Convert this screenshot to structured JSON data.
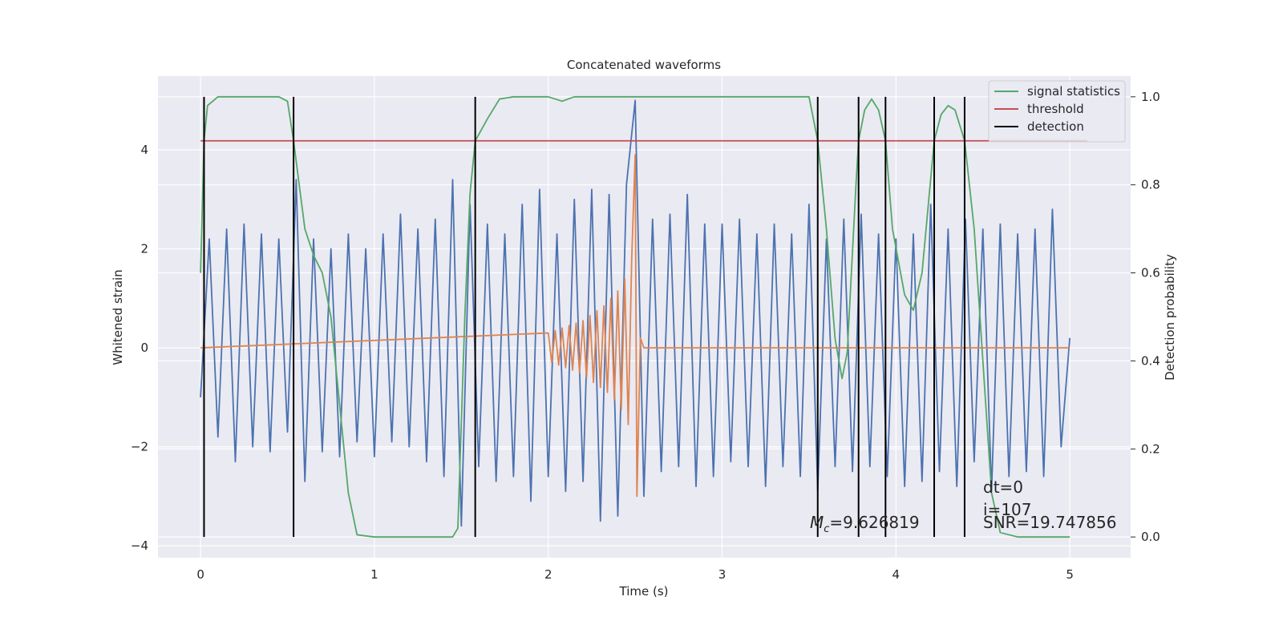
{
  "chart_data": {
    "type": "line",
    "title": "Concatenated waveforms",
    "xlabel": "Time (s)",
    "ylabel": "Whitened strain",
    "y2label": "Detection probability",
    "xlim": [
      -0.245,
      5.35
    ],
    "ylim": [
      -4.24,
      5.49
    ],
    "y2lim": [
      -0.047,
      1.047
    ],
    "xticks": [
      0,
      1,
      2,
      3,
      4,
      5
    ],
    "yticks": [
      {
        "value": -4,
        "label": "−4"
      },
      {
        "value": -2,
        "label": "−2"
      },
      0,
      2,
      4
    ],
    "y2ticks": [
      {
        "value": 0,
        "label": "0.0"
      },
      0.2,
      0.4,
      0.6,
      0.8,
      {
        "value": 1,
        "label": "1.0"
      }
    ],
    "grid": true,
    "legend": "upper right",
    "series": [
      {
        "name": null,
        "color": "#4c72b0",
        "axis": "y",
        "x": [
          0,
          0.05,
          0.1,
          0.15,
          0.2,
          0.25,
          0.3,
          0.35,
          0.4,
          0.45,
          0.5,
          0.55,
          0.6,
          0.65,
          0.7,
          0.75,
          0.8,
          0.85,
          0.9,
          0.95,
          1,
          1.05,
          1.1,
          1.15,
          1.2,
          1.25,
          1.3,
          1.35,
          1.4,
          1.45,
          1.5,
          1.55,
          1.6,
          1.65,
          1.7,
          1.75,
          1.8,
          1.85,
          1.9,
          1.95,
          2,
          2.05,
          2.1,
          2.15,
          2.2,
          2.25,
          2.3,
          2.35,
          2.4,
          2.45,
          2.5,
          2.55,
          2.6,
          2.65,
          2.7,
          2.75,
          2.8,
          2.85,
          2.9,
          2.95,
          3,
          3.05,
          3.1,
          3.15,
          3.2,
          3.25,
          3.3,
          3.35,
          3.4,
          3.45,
          3.5,
          3.55,
          3.6,
          3.65,
          3.7,
          3.75,
          3.8,
          3.85,
          3.9,
          3.95,
          4,
          4.05,
          4.1,
          4.15,
          4.2,
          4.25,
          4.3,
          4.35,
          4.4,
          4.45,
          4.5,
          4.55,
          4.6,
          4.65,
          4.7,
          4.75,
          4.8,
          4.85,
          4.9,
          4.95,
          5
        ],
        "values": [
          -1.0,
          2.2,
          -1.8,
          2.4,
          -2.3,
          2.5,
          -2.0,
          2.3,
          -2.1,
          2.2,
          -1.7,
          3.4,
          -2.7,
          2.2,
          -2.1,
          2.0,
          -2.2,
          2.3,
          -1.9,
          2.0,
          -2.2,
          2.3,
          -1.9,
          2.7,
          -2.0,
          2.4,
          -2.3,
          2.6,
          -2.6,
          3.4,
          -3.6,
          2.9,
          -2.4,
          2.5,
          -2.7,
          2.3,
          -2.6,
          2.9,
          -3.1,
          3.2,
          -2.6,
          2.3,
          -2.9,
          3.0,
          -2.7,
          3.2,
          -3.5,
          3.1,
          -3.4,
          3.3,
          5.0,
          -3.0,
          2.6,
          -2.5,
          2.7,
          -2.4,
          3.1,
          -2.8,
          2.5,
          -2.6,
          2.5,
          -2.3,
          2.6,
          -2.4,
          2.3,
          -2.8,
          2.5,
          -2.4,
          2.3,
          -2.6,
          2.9,
          -2.9,
          2.2,
          -2.4,
          2.6,
          -2.5,
          2.7,
          -2.4,
          2.3,
          -2.6,
          2.2,
          -2.8,
          2.3,
          -2.7,
          2.9,
          -2.5,
          2.4,
          -2.8,
          2.6,
          -2.3,
          2.4,
          -2.9,
          2.5,
          -2.6,
          2.3,
          -2.5,
          2.4,
          -2.6,
          2.8,
          -2.0,
          0.2
        ]
      },
      {
        "name": null,
        "color": "#dd8452",
        "axis": "y",
        "x": [
          0,
          2.0,
          2.02,
          2.04,
          2.06,
          2.08,
          2.1,
          2.12,
          2.14,
          2.16,
          2.18,
          2.2,
          2.22,
          2.24,
          2.26,
          2.28,
          2.3,
          2.32,
          2.34,
          2.36,
          2.38,
          2.4,
          2.42,
          2.44,
          2.46,
          2.48,
          2.5,
          2.51,
          2.53,
          2.55,
          5.0
        ],
        "values": [
          0,
          0.3,
          -0.3,
          0.35,
          -0.35,
          0.4,
          -0.4,
          0.45,
          -0.45,
          0.5,
          -0.5,
          0.55,
          -0.6,
          0.65,
          -0.7,
          0.75,
          -0.8,
          0.85,
          -0.9,
          1.0,
          -1.05,
          1.15,
          -1.25,
          1.4,
          -1.55,
          1.8,
          3.9,
          -3.0,
          0.2,
          0,
          0
        ]
      },
      {
        "name": "signal statistics",
        "color": "#55a868",
        "axis": "y2",
        "x": [
          0,
          0.02,
          0.04,
          0.1,
          0.45,
          0.5,
          0.535,
          0.6,
          0.65,
          0.7,
          0.75,
          0.8,
          0.85,
          0.9,
          1.0,
          1.45,
          1.48,
          1.52,
          1.55,
          1.58,
          1.65,
          1.72,
          1.8,
          2.0,
          2.08,
          2.15,
          3.5,
          3.55,
          3.6,
          3.65,
          3.69,
          3.72,
          3.77,
          3.785,
          3.82,
          3.86,
          3.9,
          3.94,
          3.98,
          4.05,
          4.1,
          4.15,
          4.22,
          4.26,
          4.3,
          4.34,
          4.395,
          4.45,
          4.5,
          4.55,
          4.6,
          4.7,
          5.0
        ],
        "values": [
          0.6,
          0.9,
          0.98,
          1.0,
          1.0,
          0.99,
          0.9,
          0.7,
          0.64,
          0.6,
          0.5,
          0.3,
          0.1,
          0.005,
          0.0,
          0.0,
          0.02,
          0.5,
          0.78,
          0.9,
          0.95,
          0.995,
          1.0,
          1.0,
          0.99,
          1.0,
          1.0,
          0.9,
          0.7,
          0.45,
          0.36,
          0.42,
          0.8,
          0.9,
          0.97,
          0.995,
          0.97,
          0.9,
          0.7,
          0.55,
          0.515,
          0.6,
          0.9,
          0.96,
          0.98,
          0.97,
          0.9,
          0.7,
          0.4,
          0.1,
          0.01,
          0.0,
          0.0
        ]
      },
      {
        "name": "threshold",
        "color": "#c44e52",
        "axis": "y2",
        "x": [
          0,
          5.1
        ],
        "values": [
          0.9,
          0.9
        ]
      },
      {
        "name": "detection",
        "color": "#000000",
        "axis": "y2",
        "kind": "vlines",
        "x": [
          0.02,
          0.535,
          1.58,
          3.55,
          3.785,
          3.94,
          4.22,
          4.395
        ],
        "values": [
          1,
          1,
          1,
          1,
          1,
          1,
          1,
          1
        ]
      }
    ],
    "annotations": {
      "mc_symbol": "M",
      "mc_subscript": "c",
      "mc_text": "=9.626819",
      "dt": "dt=0",
      "i": "i=107",
      "snr": "SNR=19.747856"
    }
  }
}
